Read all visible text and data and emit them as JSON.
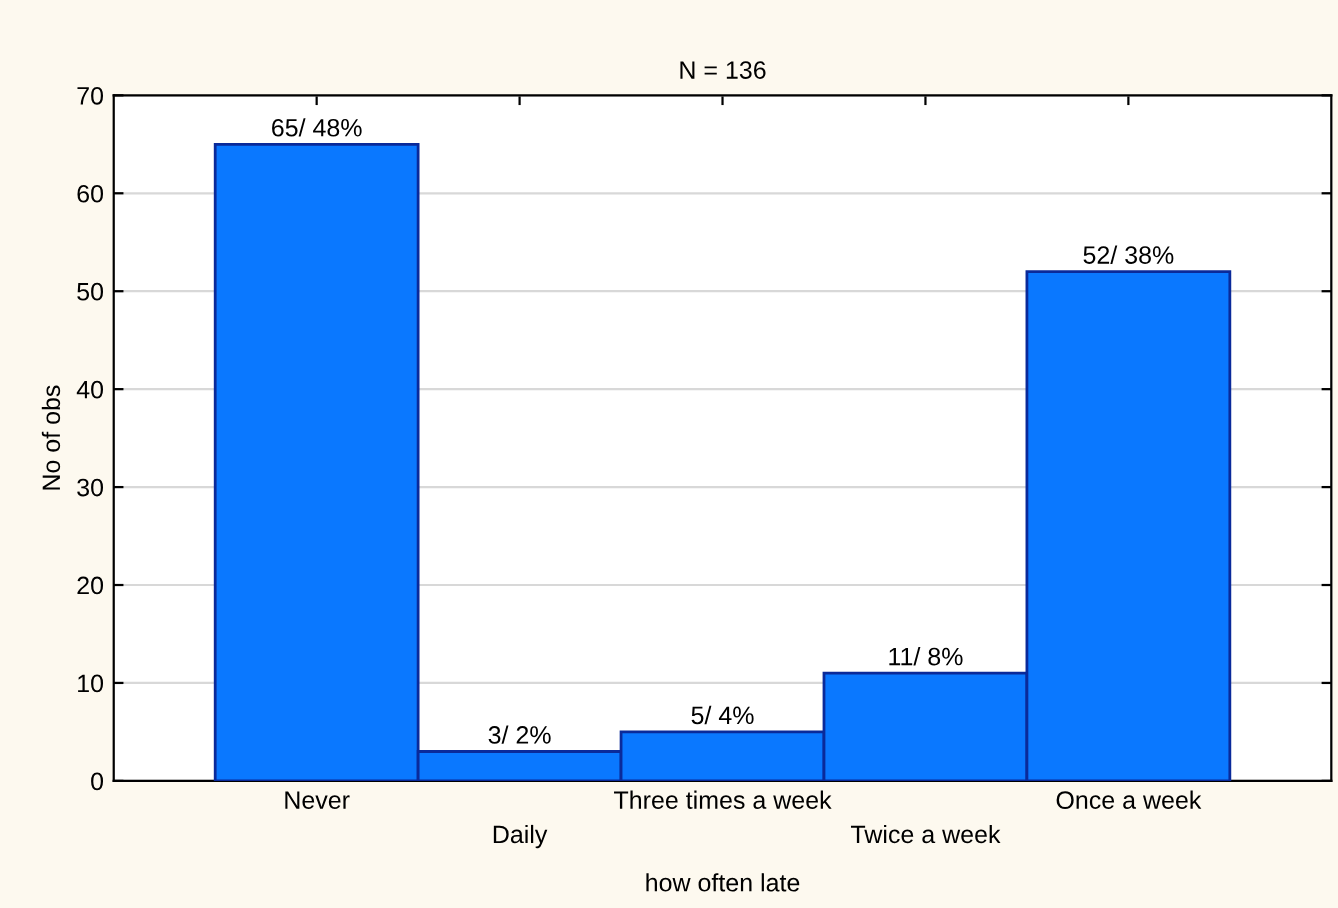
{
  "chart_data": {
    "type": "bar",
    "title": "N = 136",
    "xlabel": "how often late",
    "ylabel": "No of obs",
    "categories": [
      "Never",
      "Daily",
      "Three times a week",
      "Twice a week",
      "Once a week"
    ],
    "values": [
      65,
      3,
      5,
      11,
      52
    ],
    "value_labels": [
      "65/ 48%",
      "3/ 2%",
      "5/ 4%",
      "11/ 8%",
      "52/ 38%"
    ],
    "color": "#0a78ff",
    "ylim": [
      0,
      70
    ],
    "yticks": [
      0,
      10,
      20,
      30,
      40,
      50,
      60,
      70
    ],
    "grid": "y"
  }
}
